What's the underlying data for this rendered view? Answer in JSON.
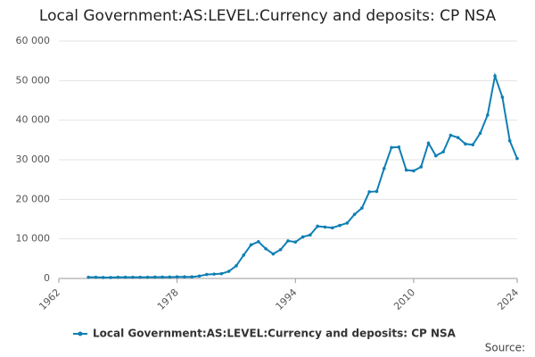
{
  "chart_data": {
    "type": "line",
    "title": "Local Government:AS:LEVEL:Currency and deposits: CP NSA",
    "x": [
      1966,
      1967,
      1968,
      1969,
      1970,
      1971,
      1972,
      1973,
      1974,
      1975,
      1976,
      1977,
      1978,
      1979,
      1980,
      1981,
      1982,
      1983,
      1984,
      1985,
      1986,
      1987,
      1988,
      1989,
      1990,
      1991,
      1992,
      1993,
      1994,
      1995,
      1996,
      1997,
      1998,
      1999,
      2000,
      2001,
      2002,
      2003,
      2004,
      2005,
      2006,
      2007,
      2008,
      2009,
      2010,
      2011,
      2012,
      2013,
      2014,
      2015,
      2016,
      2017,
      2018,
      2019,
      2020,
      2021,
      2022,
      2023,
      2024
    ],
    "series": [
      {
        "name": "Local Government:AS:LEVEL:Currency and deposits: CP NSA",
        "color": "#0f7fb5",
        "values": [
          300,
          300,
          250,
          250,
          300,
          300,
          300,
          300,
          300,
          350,
          350,
          350,
          400,
          400,
          400,
          600,
          1000,
          1100,
          1200,
          1800,
          3200,
          5900,
          8500,
          9300,
          7500,
          6200,
          7300,
          9500,
          9200,
          10500,
          11000,
          13200,
          13000,
          12800,
          13400,
          14000,
          16200,
          17800,
          21900,
          22000,
          27800,
          33100,
          33200,
          27400,
          27200,
          28200,
          34200,
          31000,
          32000,
          36200,
          35600,
          34000,
          33800,
          36700,
          41300,
          51200,
          45800,
          34800,
          30300
        ]
      }
    ],
    "xlim": [
      1962,
      2024
    ],
    "xticks": [
      1962,
      1978,
      1994,
      2010,
      2024
    ],
    "ylim": [
      0,
      60000
    ],
    "yticks": [
      0,
      {
        "value": 10000,
        "label": "10 000"
      },
      {
        "value": 20000,
        "label": "20 000"
      },
      {
        "value": 30000,
        "label": "30 000"
      },
      {
        "value": 40000,
        "label": "40 000"
      },
      {
        "value": 50000,
        "label": "50 000"
      },
      {
        "value": 60000,
        "label": "60 000"
      }
    ],
    "grid": true,
    "source": "Source:"
  }
}
